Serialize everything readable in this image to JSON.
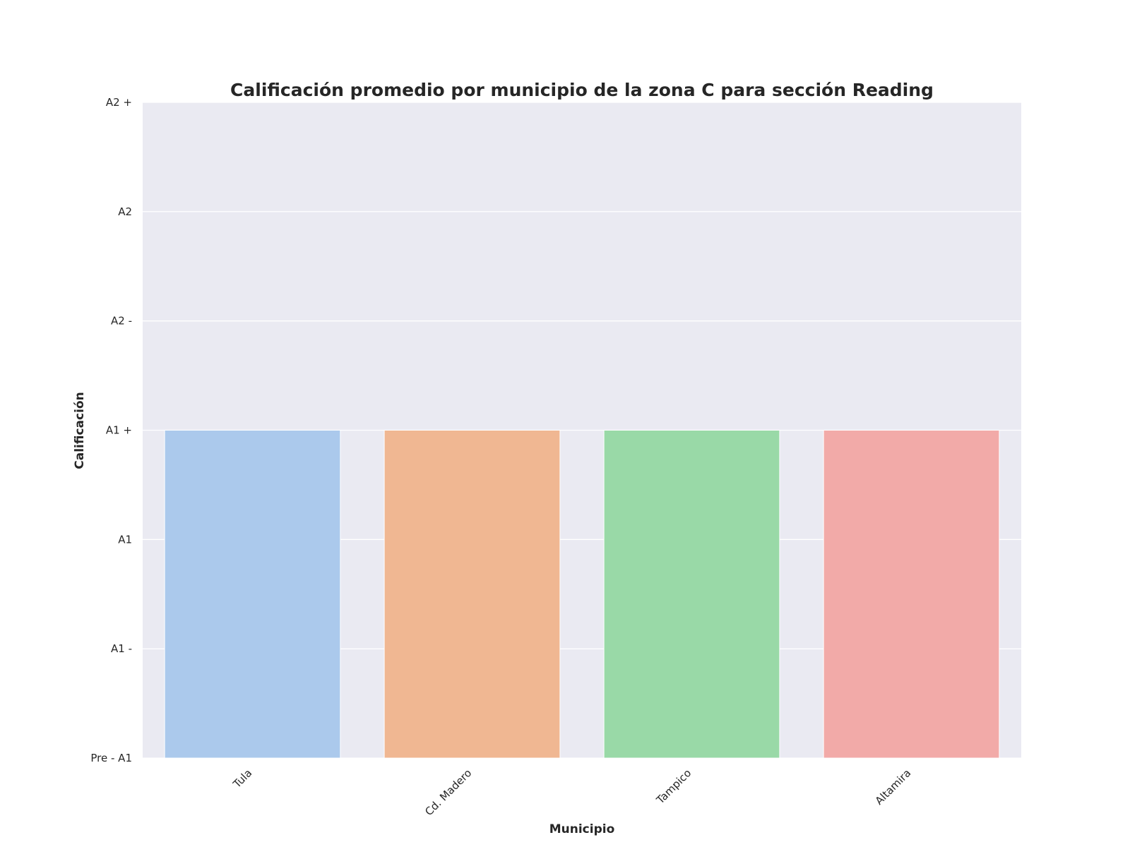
{
  "chart_data": {
    "type": "bar",
    "title": "Calificación promedio por municipio de la zona C para sección Reading",
    "xlabel": "Municipio",
    "ylabel": "Calificación",
    "categories": [
      "Tula",
      "Cd. Madero",
      "Tampico",
      "Altamira"
    ],
    "values": [
      3,
      3,
      3,
      3
    ],
    "ylim": [
      0,
      6
    ],
    "y_ticks": [
      0,
      1,
      2,
      3,
      4,
      5,
      6
    ],
    "y_tick_labels": [
      "Pre - A1",
      "A1 -",
      "A1",
      "A1 +",
      "A2 -",
      "A2",
      "A2 +"
    ],
    "colors": [
      "#abc9ec",
      "#f0b792",
      "#99d9a7",
      "#f2aaa8"
    ],
    "background": "#eaeaf2",
    "grid": true,
    "x_tick_rotation": "45"
  }
}
